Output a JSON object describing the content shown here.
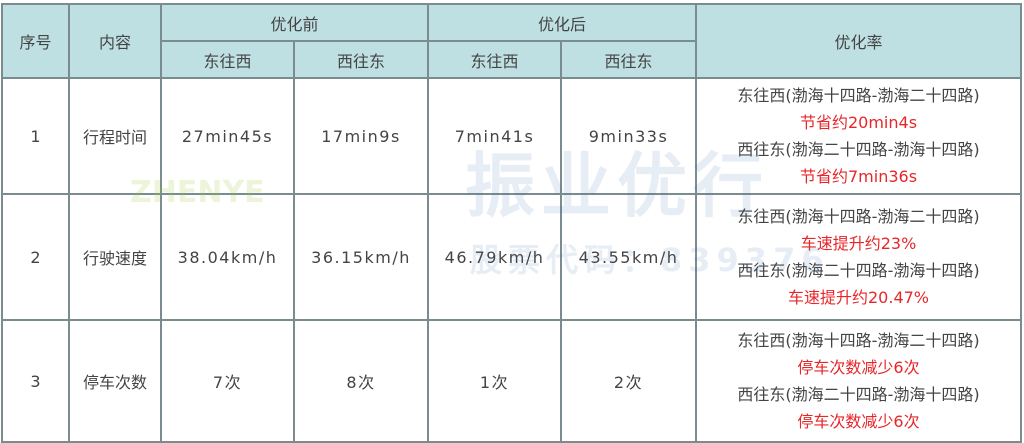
{
  "header": {
    "index": "序号",
    "content": "内容",
    "before": "优化前",
    "after": "优化后",
    "rate": "优化率",
    "sub": [
      "东往西",
      "西往东",
      "东往西",
      "西往东"
    ]
  },
  "rows": [
    {
      "index": "1",
      "content": "行程时间",
      "before_ew": "27min45s",
      "before_we": "17min9s",
      "after_ew": "7min41s",
      "after_we": "9min33s",
      "rate": [
        {
          "dir": "东往西(渤海十四路-渤海二十四路)",
          "gain": "节省约20min4s"
        },
        {
          "dir": "西往东(渤海二十四路-渤海十四路)",
          "gain": "节省约7min36s"
        }
      ]
    },
    {
      "index": "2",
      "content": "行驶速度",
      "before_ew": "38.04km/h",
      "before_we": "36.15km/h",
      "after_ew": "46.79km/h",
      "after_we": "43.55km/h",
      "rate": [
        {
          "dir": "东往西(渤海十四路-渤海二十四路)",
          "gain": "车速提升约23%"
        },
        {
          "dir": "西往东(渤海二十四路-渤海十四路)",
          "gain": "车速提升约20.47%"
        }
      ]
    },
    {
      "index": "3",
      "content": "停车次数",
      "before_ew": "7次",
      "before_we": "8次",
      "after_ew": "1次",
      "after_we": "2次",
      "rate": [
        {
          "dir": "东往西(渤海十四路-渤海二十四路)",
          "gain": "停车次数减少6次"
        },
        {
          "dir": "西往东(渤海二十四路-渤海十四路)",
          "gain": "停车次数减少6次"
        }
      ]
    }
  ],
  "watermark": {
    "logo": "ZHENYE",
    "name": "振业优行",
    "stock": "股票代码：839376"
  },
  "colors": {
    "header_bg": "#bfe0e3",
    "border": "#7a8c90",
    "highlight": "#e8262a"
  }
}
